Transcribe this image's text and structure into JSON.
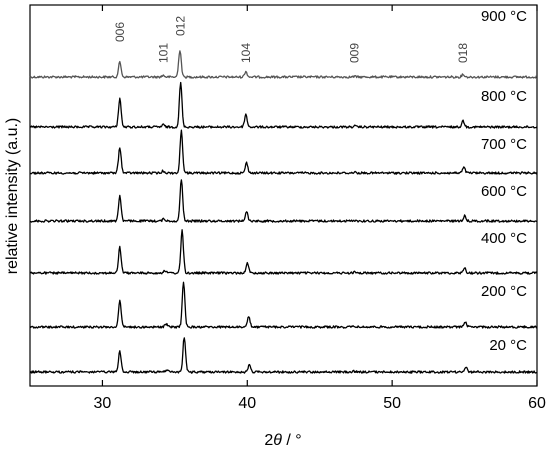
{
  "chart_data": {
    "type": "line",
    "title": "",
    "xlabel": "2θ / °",
    "ylabel": "relative intensity (a.u.)",
    "xlim": [
      25,
      60
    ],
    "xticks": [
      30,
      40,
      50,
      60
    ],
    "yaxis_ticks_shown": false,
    "grid": false,
    "layout": "stacked waterfall, highest temperature on top",
    "peak_labels": [
      {
        "label": "006",
        "x": 31.2
      },
      {
        "label": "101",
        "x": 34.2
      },
      {
        "label": "012",
        "x": 35.4
      },
      {
        "label": "104",
        "x": 39.9
      },
      {
        "label": "009",
        "x": 47.4
      },
      {
        "label": "018",
        "x": 54.9
      }
    ],
    "series": [
      {
        "name": "900 °C",
        "color": "#555555",
        "peaks": [
          {
            "x": 31.2,
            "rel": 0.55
          },
          {
            "x": 34.2,
            "rel": 0.06
          },
          {
            "x": 35.35,
            "rel": 1.0
          },
          {
            "x": 39.9,
            "rel": 0.2
          },
          {
            "x": 47.4,
            "rel": 0.02
          },
          {
            "x": 54.9,
            "rel": 0.1
          }
        ]
      },
      {
        "name": "800 °C",
        "color": "#000000",
        "peaks": [
          {
            "x": 31.2,
            "rel": 0.65
          },
          {
            "x": 34.2,
            "rel": 0.05
          },
          {
            "x": 35.4,
            "rel": 1.0
          },
          {
            "x": 39.9,
            "rel": 0.28
          },
          {
            "x": 47.4,
            "rel": 0.02
          },
          {
            "x": 54.9,
            "rel": 0.14
          }
        ]
      },
      {
        "name": "700 °C",
        "color": "#000000",
        "peaks": [
          {
            "x": 31.2,
            "rel": 0.62
          },
          {
            "x": 34.2,
            "rel": 0.05
          },
          {
            "x": 35.45,
            "rel": 1.0
          },
          {
            "x": 39.95,
            "rel": 0.24
          },
          {
            "x": 47.4,
            "rel": 0.02
          },
          {
            "x": 54.95,
            "rel": 0.13
          }
        ]
      },
      {
        "name": "600 °C",
        "color": "#000000",
        "peaks": [
          {
            "x": 31.2,
            "rel": 0.6
          },
          {
            "x": 34.25,
            "rel": 0.05
          },
          {
            "x": 35.45,
            "rel": 1.0
          },
          {
            "x": 39.95,
            "rel": 0.22
          },
          {
            "x": 47.4,
            "rel": 0.02
          },
          {
            "x": 55.0,
            "rel": 0.12
          }
        ]
      },
      {
        "name": "400 °C",
        "color": "#000000",
        "peaks": [
          {
            "x": 31.2,
            "rel": 0.6
          },
          {
            "x": 34.3,
            "rel": 0.06
          },
          {
            "x": 35.5,
            "rel": 1.0
          },
          {
            "x": 40.0,
            "rel": 0.22
          },
          {
            "x": 47.4,
            "rel": 0.02
          },
          {
            "x": 55.0,
            "rel": 0.12
          }
        ]
      },
      {
        "name": "200 °C",
        "color": "#000000",
        "peaks": [
          {
            "x": 31.2,
            "rel": 0.6
          },
          {
            "x": 34.4,
            "rel": 0.06
          },
          {
            "x": 35.6,
            "rel": 1.0
          },
          {
            "x": 40.1,
            "rel": 0.22
          },
          {
            "x": 47.4,
            "rel": 0.02
          },
          {
            "x": 55.05,
            "rel": 0.12
          }
        ]
      },
      {
        "name": "20 °C",
        "color": "#000000",
        "peaks": [
          {
            "x": 31.2,
            "rel": 0.6
          },
          {
            "x": 34.45,
            "rel": 0.06
          },
          {
            "x": 35.65,
            "rel": 1.0
          },
          {
            "x": 40.15,
            "rel": 0.22
          },
          {
            "x": 47.4,
            "rel": 0.02
          },
          {
            "x": 55.1,
            "rel": 0.12
          }
        ]
      }
    ]
  }
}
